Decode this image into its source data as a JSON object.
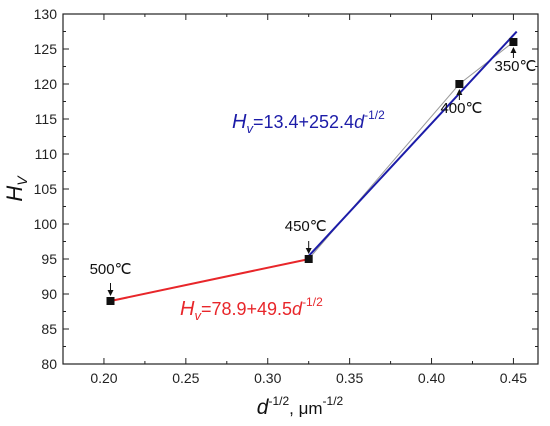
{
  "chart_data": {
    "type": "scatter",
    "title": "",
    "x_axis": {
      "label_main": "d",
      "label_sup": "-1/2",
      "label_unit": ", μm",
      "label_unit_sup": "-1/2",
      "range": [
        0.175,
        0.465
      ],
      "ticks": [
        0.2,
        0.25,
        0.3,
        0.35,
        0.4,
        0.45
      ],
      "tick_labels": [
        "0.20",
        "0.25",
        "0.30",
        "0.35",
        "0.40",
        "0.45"
      ]
    },
    "y_axis": {
      "label_main": "H",
      "label_sub": "V",
      "range": [
        80,
        130
      ],
      "ticks": [
        80,
        85,
        90,
        95,
        100,
        105,
        110,
        115,
        120,
        125,
        130
      ],
      "tick_labels": [
        "80",
        "85",
        "90",
        "95",
        "100",
        "105",
        "110",
        "115",
        "120",
        "125",
        "130"
      ]
    },
    "grid": false,
    "legend": "none",
    "points": [
      {
        "x": 0.204,
        "y": 89,
        "label": "500℃"
      },
      {
        "x": 0.325,
        "y": 95,
        "label": "450℃"
      },
      {
        "x": 0.417,
        "y": 120,
        "label": "400℃"
      },
      {
        "x": 0.45,
        "y": 126,
        "label": "350℃"
      }
    ],
    "fits": [
      {
        "equation_main": "H",
        "equation_sub": "v",
        "equation_rest": "=78.9+49.5",
        "equation_var": "d",
        "equation_sup": "-1/2",
        "intercept": 78.9,
        "slope": 49.5,
        "x_range": [
          0.204,
          0.325
        ],
        "color": "#e8262a"
      },
      {
        "equation_main": "H",
        "equation_sub": "v",
        "equation_rest": "=13.4+252.4",
        "equation_var": "d",
        "equation_sup": "-1/2",
        "intercept": 13.4,
        "slope": 252.4,
        "x_range": [
          0.325,
          0.452
        ],
        "color": "#1c1ca8"
      }
    ],
    "connector_color": "#9a9a9a"
  }
}
